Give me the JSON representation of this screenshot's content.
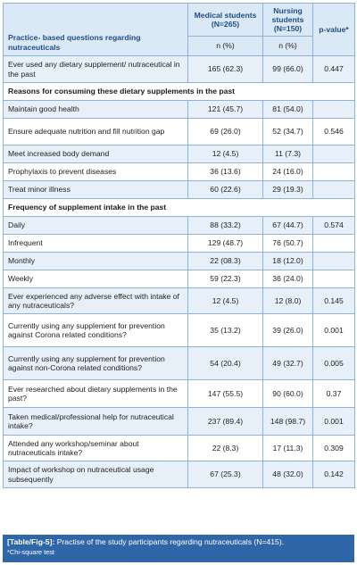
{
  "table": {
    "header": {
      "question_col": "Practice- based questions regarding nutraceuticals",
      "medical": "Medical students (N=265)",
      "nursing": "Nursing students (N=150)",
      "pvalue": "p-value*",
      "medical_unit": "n (%)",
      "nursing_unit": "n (%)"
    },
    "rows": [
      {
        "q": "Ever used any dietary supplement/ nutraceutical in the past",
        "med": "165 (62.3)",
        "nur": "99 (66.0)",
        "p": "0.447"
      },
      {
        "section": "Reasons for consuming these dietary supplements in the past"
      },
      {
        "q": "Maintain good health",
        "med": "121 (45.7)",
        "nur": "81 (54.0)",
        "p": ""
      },
      {
        "q": "Ensure adequate nutrition and fill nutrition gap",
        "med": "69 (26.0)",
        "nur": "52 (34.7)",
        "p": "0.546"
      },
      {
        "q": "Meet increased body demand",
        "med": "12 (4.5)",
        "nur": "11 (7.3)",
        "p": ""
      },
      {
        "q": "Prophylaxis to prevent diseases",
        "med": "36 (13.6)",
        "nur": "24 (16.0)",
        "p": ""
      },
      {
        "q": "Treat minor illness",
        "med": "60 (22.6)",
        "nur": "29 (19.3)",
        "p": ""
      },
      {
        "section": "Frequency of supplement intake in the past"
      },
      {
        "q": "Daily",
        "med": "88 (33.2)",
        "nur": "67 (44.7)",
        "p": "0.574"
      },
      {
        "q": "Infrequent",
        "med": "129 (48.7)",
        "nur": "76 (50.7)",
        "p": ""
      },
      {
        "q": "Monthly",
        "med": "22 (08.3)",
        "nur": "18 (12.0)",
        "p": ""
      },
      {
        "q": "Weekly",
        "med": "59 (22.3)",
        "nur": "36 (24.0)",
        "p": ""
      },
      {
        "q": "Ever experienced any adverse effect with intake of any nutraceuticals?",
        "med": "12 (4.5)",
        "nur": "12 (8.0)",
        "p": "0.145"
      },
      {
        "q": "Currently using any supplement for prevention against Corona related conditions?",
        "med": "35 (13.2)",
        "nur": "39 (26.0)",
        "p": "0.001"
      },
      {
        "q": "Currently using any supplement for prevention against non-Corona related conditions?",
        "med": "54 (20.4)",
        "nur": "49 (32.7)",
        "p": "0.005"
      },
      {
        "q": "Ever researched about dietary supplements in the past?",
        "med": "147 (55.5)",
        "nur": "90 (60.0)",
        "p": "0.37"
      },
      {
        "q": "Taken medical/professional help for nutraceutical intake?",
        "med": "237 (89.4)",
        "nur": "148 (98.7)",
        "p": "0.001"
      },
      {
        "q": "Attended any workshop/seminar about nutraceuticals intake?",
        "med": "22 (8.3)",
        "nur": "17 (11.3)",
        "p": "0.309"
      },
      {
        "q": "Impact of workshop on nutraceutical usage subsequently",
        "med": "67 (25.3)",
        "nur": "48 (32.0)",
        "p": "0.142"
      }
    ]
  },
  "caption": {
    "label": "[Table/Fig-5]:",
    "text": "Practise of the study participants regarding nutraceuticals (N=415).",
    "note": "*Chi-square test"
  },
  "colors": {
    "header_bg": "#dbe8f5",
    "header_text": "#1f4e85",
    "stripe": "#e7f0f9",
    "border": "#8fb3d6",
    "caption_bg": "#2e66a8"
  }
}
